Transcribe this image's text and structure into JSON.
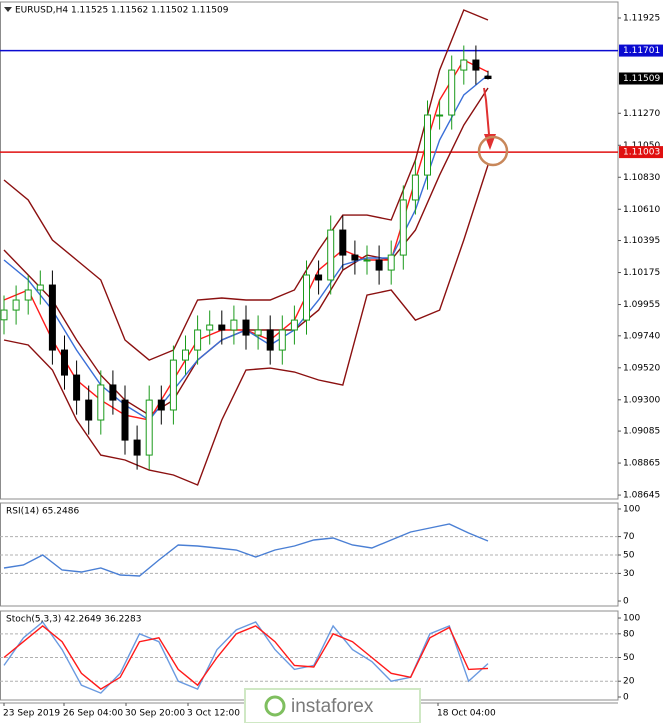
{
  "chart_data": [
    {
      "type": "candlestick",
      "title": "EURUSD,H4  1.11525 1.11562 1.11502 1.11509",
      "open": [
        1.0985,
        1.09917,
        1.09986,
        1.10055,
        1.10089,
        1.09642,
        1.0947,
        1.09298,
        1.09161,
        1.09402,
        1.09298,
        1.09023,
        1.0892,
        1.09298,
        1.0923,
        1.09573,
        1.09642,
        1.0978,
        1.09814,
        1.0978,
        1.09848,
        1.09745,
        1.0978,
        1.09642,
        1.0978,
        1.09848,
        1.10158,
        1.10124,
        1.10467,
        1.10295,
        1.10261,
        1.10261,
        1.10192,
        1.10295,
        1.10674,
        1.10845,
        1.11258,
        1.11258,
        1.11567,
        1.11636,
        1.11525
      ],
      "high": [
        1.10017,
        1.10086,
        1.10155,
        1.10189,
        1.10189,
        1.09742,
        1.0957,
        1.09398,
        1.09502,
        1.09502,
        1.09398,
        1.09123,
        1.09398,
        1.09398,
        1.09673,
        1.09742,
        1.0988,
        1.09914,
        1.09914,
        1.09948,
        1.09948,
        1.0988,
        1.0988,
        1.0988,
        1.09948,
        1.10258,
        1.10258,
        1.10567,
        1.10567,
        1.10395,
        1.10361,
        1.10361,
        1.10395,
        1.10774,
        1.10945,
        1.11358,
        1.11358,
        1.11667,
        1.11736,
        1.11736,
        1.11562
      ],
      "low": [
        1.0975,
        1.09817,
        1.09886,
        1.09955,
        1.09542,
        1.0937,
        1.09198,
        1.09061,
        1.09061,
        1.09198,
        1.08923,
        1.0882,
        1.0882,
        1.0913,
        1.0913,
        1.09473,
        1.09542,
        1.0968,
        1.0968,
        1.0968,
        1.09645,
        1.09645,
        1.09542,
        1.09542,
        1.0968,
        1.09748,
        1.10024,
        1.10024,
        1.10195,
        1.10161,
        1.10161,
        1.10092,
        1.10092,
        1.10195,
        1.10574,
        1.10745,
        1.11158,
        1.11158,
        1.11467,
        1.11467,
        1.11502
      ],
      "close": [
        1.09917,
        1.09986,
        1.10055,
        1.10089,
        1.09642,
        1.0947,
        1.09298,
        1.09161,
        1.09402,
        1.09298,
        1.09023,
        1.0892,
        1.09298,
        1.0923,
        1.09573,
        1.09642,
        1.0978,
        1.09814,
        1.0978,
        1.09848,
        1.09745,
        1.0978,
        1.09642,
        1.0978,
        1.09848,
        1.10158,
        1.10124,
        1.10467,
        1.10295,
        1.10261,
        1.10261,
        1.10192,
        1.10295,
        1.10674,
        1.10845,
        1.11258,
        1.11258,
        1.11567,
        1.11636,
        1.11567,
        1.11509
      ],
      "up_color": "#1a9a1a",
      "down_color": "#000000",
      "series": [
        {
          "color": "#8b1010",
          "values": [
            1.10811,
            1.10674,
            1.10399,
            1.10261,
            1.10124,
            1.09711,
            1.09573,
            1.09642,
            1.09986,
            1.1,
            1.09986,
            1.09986,
            1.10055,
            1.1033,
            1.1057,
            1.1057,
            1.10536,
            1.10949,
            1.11567,
            1.1198,
            1.11911
          ]
        },
        {
          "color": "#8b1010",
          "values": [
            1.09711,
            1.09677,
            1.09505,
            1.09161,
            1.0892,
            1.08886,
            1.08817,
            1.08783,
            1.08714,
            1.09161,
            1.09505,
            1.09518,
            1.09491,
            1.09436,
            1.09402,
            1.1002,
            1.10055,
            1.09848,
            1.09917,
            1.10399,
            1.10914
          ]
        },
        {
          "color": "#8b1010",
          "values": [
            1.1033,
            1.10158,
            1.09986,
            1.09711,
            1.0947,
            1.09298,
            1.09195,
            1.09298,
            1.09573,
            1.09711,
            1.0978,
            1.0978,
            1.0978,
            1.09917,
            1.10192,
            1.10295,
            1.10261,
            1.10467,
            1.10845,
            1.11189,
            1.11444
          ]
        },
        {
          "color": "#ff1a1a",
          "values": [
            1.09986,
            1.10055,
            1.09711,
            1.09436,
            1.09298,
            1.09195,
            1.09161,
            1.09436,
            1.09711,
            1.0978,
            1.0978,
            1.09711,
            1.09848,
            1.10192,
            1.1033,
            1.10261,
            1.10261,
            1.10811,
            1.11361,
            1.11636,
            1.11554
          ]
        },
        {
          "color": "#3a6fd8",
          "values": [
            1.10261,
            1.10124,
            1.09917,
            1.09642,
            1.09402,
            1.09264,
            1.09161,
            1.09367,
            1.09573,
            1.09711,
            1.0978,
            1.09677,
            1.0978,
            1.09986,
            1.10227,
            1.10275,
            1.10275,
            1.10605,
            1.11086,
            1.11396,
            1.11533
          ]
        }
      ],
      "hlines": [
        {
          "value": 1.11701,
          "color": "#0a0ad0"
        },
        {
          "value": 1.11003,
          "color": "#e01010"
        }
      ],
      "ylim": [
        1.08618,
        1.12035
      ],
      "yticks": [
        1.11925,
        {
          "value": 1.1127,
          "label": "1.11270"
        },
        {
          "value": 1.1105,
          "label": "1.11050"
        },
        {
          "value": 1.1083,
          "label": "1.10830"
        },
        {
          "value": 1.1061,
          "label": "1.10610"
        },
        1.10395,
        1.10175,
        1.09955,
        {
          "value": 1.0974,
          "label": "1.09740"
        },
        {
          "value": 1.0952,
          "label": "1.09520"
        },
        {
          "value": 1.093,
          "label": "1.09300"
        },
        1.09085,
        1.08865,
        1.08645
      ]
    },
    {
      "type": "line",
      "title": "RSI(14) 65.2486",
      "series": [
        {
          "color": "#4a7fd4",
          "values": [
            35.9,
            39.1,
            50,
            33.7,
            31.5,
            35.9,
            28.3,
            27.2,
            44.6,
            60.9,
            59.8,
            57.6,
            55.4,
            47.8,
            55.4,
            59.8,
            66.3,
            68.5,
            60.9,
            57.6,
            66.3,
            75,
            79.3,
            83.7,
            73.9,
            65.2486
          ]
        }
      ],
      "ylim": [
        -5.4,
        106.5
      ],
      "yticks": [
        100,
        70,
        50,
        30,
        0
      ],
      "levels": [
        70,
        50,
        30
      ]
    },
    {
      "type": "line",
      "title": "Stoch(5,3,3) 42.2649 36.2283",
      "series": [
        {
          "color": "#6a9ae0",
          "values": [
            40,
            75,
            95,
            60,
            15,
            5,
            30,
            80,
            70,
            20,
            10,
            60,
            85,
            95,
            60,
            35,
            40,
            90,
            60,
            45,
            20,
            25,
            80,
            90,
            20,
            42.2649
          ]
        },
        {
          "color": "#ff1a1a",
          "values": [
            50,
            70,
            90,
            70,
            30,
            10,
            25,
            70,
            75,
            35,
            15,
            50,
            80,
            90,
            70,
            40,
            38,
            80,
            70,
            50,
            30,
            25,
            75,
            88,
            35,
            36.2283
          ]
        }
      ],
      "ylim": [
        -3.8,
        108.9
      ],
      "yticks": [
        100,
        80,
        50,
        20,
        0
      ],
      "levels": [
        80,
        50,
        20
      ]
    }
  ],
  "x_labels": [
    "23 Sep 2019",
    "26 Sep 04:00",
    "30 Sep 20:00",
    "3 Oct 12:00",
    "18 Oct 04:00"
  ],
  "watermark": "instaforex"
}
